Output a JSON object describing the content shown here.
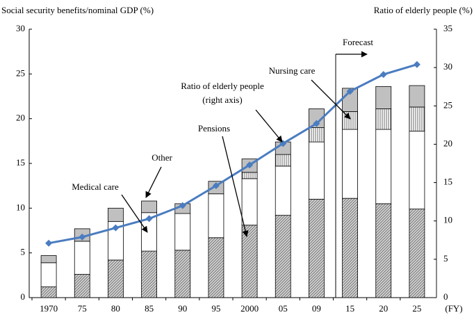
{
  "chart_data": {
    "type": "bar",
    "y_label": "Social security benefits/nominal GDP (%)",
    "y2_label": "Ratio of elderly people (%)",
    "x_unit": "(FY)",
    "categories": [
      "1970",
      "75",
      "80",
      "85",
      "90",
      "95",
      "2000",
      "05",
      "09",
      "15",
      "20",
      "25"
    ],
    "series": [
      {
        "name": "Pensions",
        "color": "#d0d0d0",
        "pattern": "diagonal",
        "values": [
          1.2,
          2.6,
          4.2,
          5.2,
          5.3,
          6.7,
          8.1,
          9.2,
          11.0,
          11.1,
          10.5,
          9.9
        ]
      },
      {
        "name": "Medical care",
        "color": "#ffffff",
        "values": [
          2.7,
          3.7,
          4.3,
          4.3,
          4.1,
          4.9,
          5.2,
          5.5,
          6.4,
          7.7,
          8.3,
          8.7
        ]
      },
      {
        "name": "Nursing care",
        "color": "#ffffff",
        "pattern": "vertical",
        "values": [
          null,
          null,
          null,
          null,
          null,
          null,
          0.7,
          1.3,
          1.6,
          2.0,
          2.3,
          2.7
        ]
      },
      {
        "name": "Other",
        "color": "#c0c0c0",
        "values": [
          0.8,
          1.4,
          1.5,
          1.3,
          1.1,
          1.4,
          1.5,
          1.4,
          2.1,
          2.6,
          2.5,
          2.4
        ]
      },
      {
        "type": "line",
        "axis": "y2",
        "color": "#4a7cc0",
        "values": [
          7.1,
          7.9,
          9.1,
          10.3,
          12.0,
          14.6,
          17.3,
          20.1,
          22.7,
          26.9,
          29.1,
          30.4
        ]
      }
    ],
    "annotations": [
      "Forecast",
      "Ratio of elderly people",
      "(right axis)"
    ],
    "ylim": [
      0,
      30
    ],
    "yticks": [
      0,
      5,
      10,
      15,
      20,
      25,
      30
    ],
    "y2lim": [
      0,
      35
    ],
    "y2ticks": [
      0,
      5,
      10,
      15,
      20,
      25,
      30,
      35
    ]
  }
}
